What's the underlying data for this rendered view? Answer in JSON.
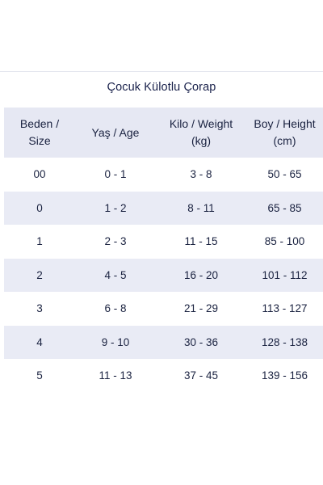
{
  "title": "Çocuk Külotlu Çorap",
  "headers": [
    [
      "Beden /",
      "Size"
    ],
    [
      "Yaş / Age"
    ],
    [
      "Kilo / Weight",
      "(kg)"
    ],
    [
      "Boy / Height",
      "(cm)"
    ]
  ],
  "rows": [
    [
      "00",
      "0 - 1",
      "3 - 8",
      "50 - 65"
    ],
    [
      "0",
      "1 - 2",
      "8 - 11",
      "65 - 85"
    ],
    [
      "1",
      "2 - 3",
      "11 - 15",
      "85 - 100"
    ],
    [
      "2",
      "4 - 5",
      "16 - 20",
      "101 - 112"
    ],
    [
      "3",
      "6 - 8",
      "21 - 29",
      "113 - 127"
    ],
    [
      "4",
      "9 - 10",
      "30 - 36",
      "128 - 138"
    ],
    [
      "5",
      "11 - 13",
      "37 - 45",
      "139 - 156"
    ]
  ],
  "colors": {
    "text": "#1a2240",
    "stripe": "#e9ebf5",
    "header_bg": "#e6e8f3",
    "background": "#ffffff"
  }
}
